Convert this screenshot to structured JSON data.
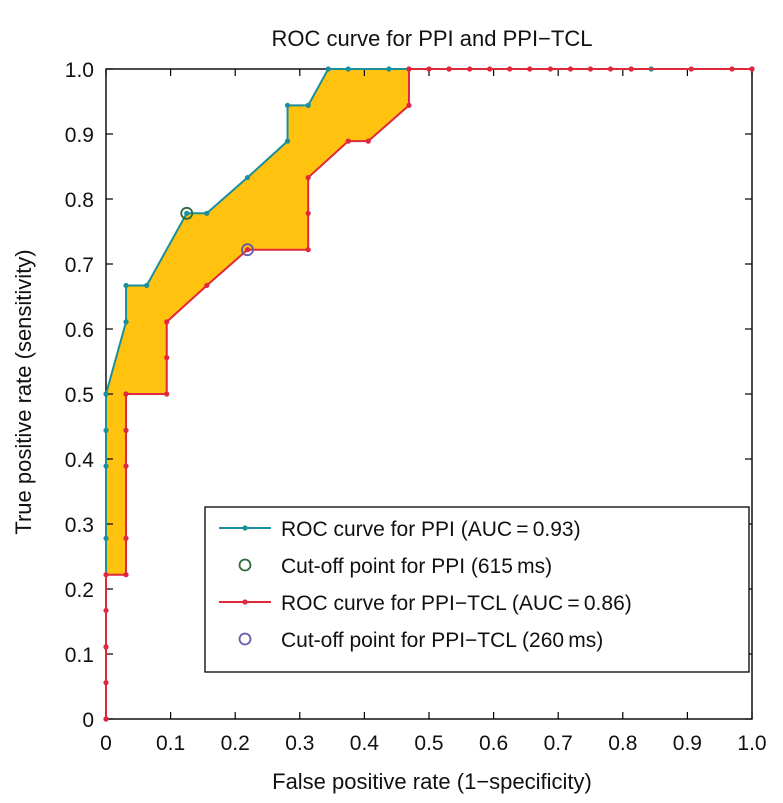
{
  "chart_data": {
    "type": "line",
    "title": "ROC curve for PPI and PPI−TCL",
    "xlabel": "False positive rate (1−specificity)",
    "ylabel": "True positive rate (sensitivity)",
    "xlim": [
      0,
      1
    ],
    "ylim": [
      0,
      1
    ],
    "xticks": [
      "0",
      "0.1",
      "0.2",
      "0.3",
      "0.4",
      "0.5",
      "0.6",
      "0.7",
      "0.8",
      "0.9",
      "1.0"
    ],
    "yticks": [
      "0",
      "0.1",
      "0.2",
      "0.3",
      "0.4",
      "0.5",
      "0.6",
      "0.7",
      "0.8",
      "0.9",
      "1.0"
    ],
    "grid": false,
    "fill_between_color": "#ffc20e",
    "legend": {
      "placement": "lower-right",
      "entries": [
        "ROC curve for PPI (AUC = 0.93)",
        "Cut-off point for PPI (615 ms)",
        "ROC curve for PPI−TCL (AUC = 0.86)",
        "Cut-off point for PPI−TCL (260 ms)"
      ]
    },
    "series": [
      {
        "color": "#1a8f9e",
        "marker": "dot",
        "x": [
          0,
          0,
          0,
          0,
          0,
          0,
          0,
          0.031,
          0.031,
          0.063,
          0.125,
          0.156,
          0.219,
          0.281,
          0.281,
          0.313,
          0.344,
          0.375,
          0.438,
          0.469,
          0.531,
          0.813,
          0.844,
          1.0
        ],
        "y": [
          0,
          0.111,
          0.278,
          0.389,
          0.444,
          0.5,
          0.5,
          0.611,
          0.667,
          0.667,
          0.778,
          0.778,
          0.833,
          0.889,
          0.944,
          0.944,
          1.0,
          1.0,
          1.0,
          1.0,
          1.0,
          1.0,
          1.0,
          1.0
        ]
      },
      {
        "color": "#e0283c",
        "marker": "dot",
        "x": [
          0,
          0,
          0,
          0,
          0,
          0.031,
          0.031,
          0.031,
          0.031,
          0.031,
          0.094,
          0.094,
          0.094,
          0.156,
          0.219,
          0.313,
          0.313,
          0.313,
          0.375,
          0.406,
          0.469,
          0.469,
          0.5,
          0.531,
          0.563,
          0.594,
          0.625,
          0.656,
          0.688,
          0.719,
          0.75,
          0.781,
          0.813,
          0.906,
          0.969,
          1.0
        ],
        "y": [
          0,
          0.056,
          0.111,
          0.167,
          0.222,
          0.222,
          0.278,
          0.389,
          0.444,
          0.5,
          0.5,
          0.556,
          0.611,
          0.667,
          0.722,
          0.722,
          0.778,
          0.833,
          0.889,
          0.889,
          0.944,
          1.0,
          1.0,
          1.0,
          1.0,
          1.0,
          1.0,
          1.0,
          1.0,
          1.0,
          1.0,
          1.0,
          1.0,
          1.0,
          1.0,
          1.0
        ]
      }
    ],
    "cutoff_points": [
      {
        "x": 0.125,
        "y": 0.778,
        "color": "#2e6b3a"
      },
      {
        "x": 0.219,
        "y": 0.722,
        "color": "#6a5aa8"
      }
    ]
  }
}
